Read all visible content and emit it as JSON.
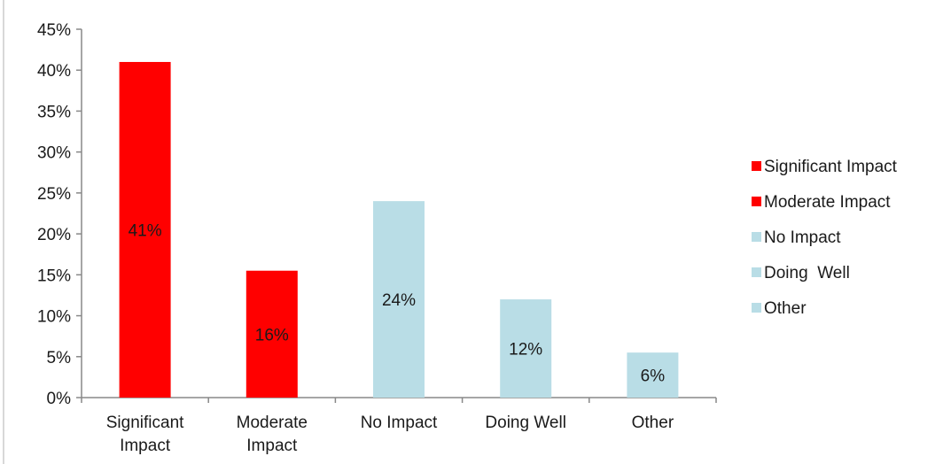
{
  "chart_data": {
    "type": "bar",
    "title": "",
    "xlabel": "",
    "ylabel": "",
    "categories": [
      {
        "lines": [
          "Significant",
          "Impact"
        ],
        "name": "Significant Impact"
      },
      {
        "lines": [
          "Moderate",
          "Impact"
        ],
        "name": "Moderate Impact"
      },
      {
        "lines": [
          "No Impact"
        ],
        "name": "No Impact"
      },
      {
        "lines": [
          "Doing  Well"
        ],
        "name": "Doing  Well"
      },
      {
        "lines": [
          "Other"
        ],
        "name": "Other"
      }
    ],
    "values": [
      41,
      15.5,
      24,
      12,
      5.5
    ],
    "data_labels": [
      "41%",
      "16%",
      "24%",
      "12%",
      "6%"
    ],
    "bar_colors": [
      "#ff0000",
      "#ff0000",
      "#b9dde6",
      "#b9dde6",
      "#b9dde6"
    ],
    "ylim": [
      0,
      45
    ],
    "y_ticks": [
      0,
      5,
      10,
      15,
      20,
      25,
      30,
      35,
      40,
      45
    ],
    "y_tick_labels": [
      "0%",
      "5%",
      "10%",
      "15%",
      "20%",
      "25%",
      "30%",
      "35%",
      "40%",
      "45%"
    ],
    "grid": false,
    "legend": {
      "position": "right",
      "entries": [
        {
          "label": "Significant Impact",
          "color": "#ff0000"
        },
        {
          "label": "Moderate Impact",
          "color": "#ff0000"
        },
        {
          "label": "No Impact",
          "color": "#b9dde6"
        },
        {
          "label": "Doing  Well",
          "color": "#b9dde6"
        },
        {
          "label": "Other",
          "color": "#b9dde6"
        }
      ]
    },
    "axis_color": "#888888"
  }
}
